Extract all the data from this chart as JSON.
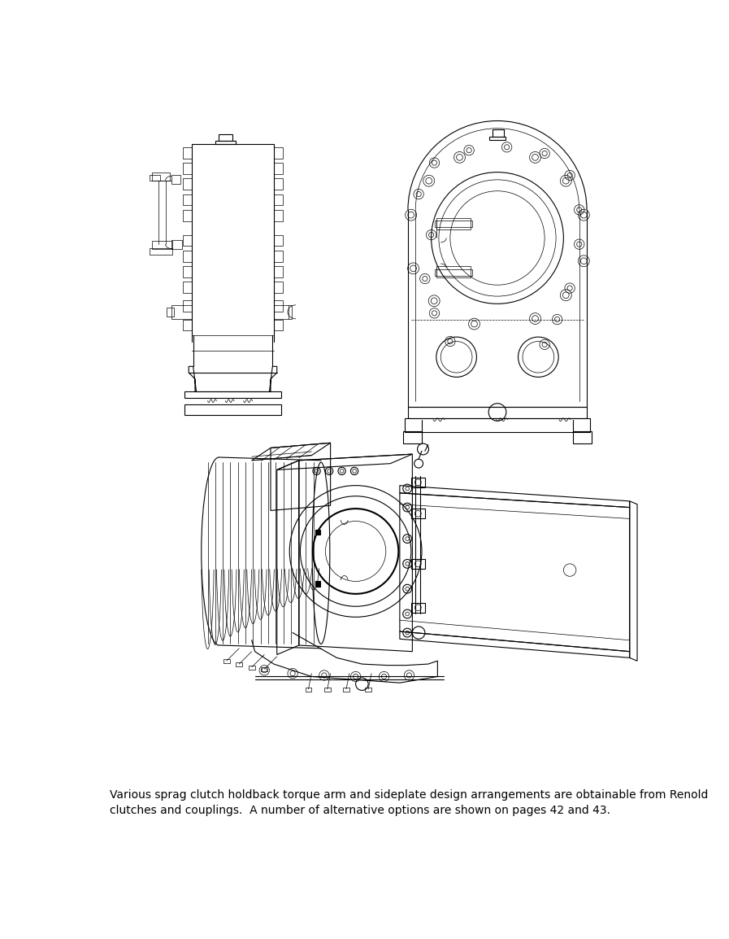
{
  "bg_color": "#ffffff",
  "line_color": "#000000",
  "lw": 0.8,
  "tlw": 0.5,
  "thk": 1.5,
  "caption_line1": "Various sprag clutch holdback torque arm and sideplate design arrangements are obtainable from Renold",
  "caption_line2": "clutches and couplings.  A number of alternative options are shown on pages 42 and 43.",
  "caption_fontsize": 10.0
}
